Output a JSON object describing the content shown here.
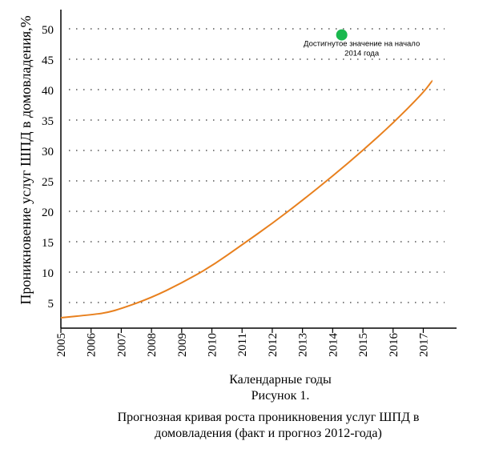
{
  "chart_data": {
    "type": "line",
    "ylabel": "Проникновение услуг ШПД в домовладения,%",
    "xlabel": "Календарные годы",
    "x_ticks": [
      "2005",
      "2006",
      "2007",
      "2008",
      "2009",
      "2010",
      "2011",
      "2012",
      "2013",
      "2014",
      "2015",
      "2016",
      "2017"
    ],
    "y_ticks": [
      "5",
      "10",
      "15",
      "20",
      "25",
      "30",
      "35",
      "40",
      "45",
      "50"
    ],
    "xlim": [
      2005,
      2018.2
    ],
    "ylim": [
      0,
      53.5
    ],
    "grid": "dotted horizontal",
    "series": [
      {
        "color": "#e8801e",
        "x": [
          2005.0,
          2006.0,
          2006.5,
          2007.0,
          2008.0,
          2009.0,
          2010.0,
          2011.0,
          2012.0,
          2013.0,
          2014.0,
          2015.0,
          2016.0,
          2017.0,
          2017.3
        ],
        "y": [
          2.5,
          3.0,
          3.3,
          4.0,
          5.8,
          8.2,
          11.0,
          14.5,
          18.0,
          21.8,
          25.8,
          30.0,
          34.5,
          39.5,
          41.5
        ]
      }
    ],
    "points": [
      {
        "x": 2014.3,
        "y": 49.0,
        "color": "#1ab84e",
        "label_line1": "Достигнутое значение на начало",
        "label_line2": "2014 года"
      }
    ]
  },
  "caption": {
    "figure_number": "Рисунок 1.",
    "line1": "Прогнозная кривая роста проникновения услуг ШПД в",
    "line2": "домовладения (факт и прогноз 2012-года)"
  },
  "colors": {
    "axis": "#000000",
    "grid": "#555555",
    "line": "#e8801e",
    "marker": "#1ab84e"
  }
}
